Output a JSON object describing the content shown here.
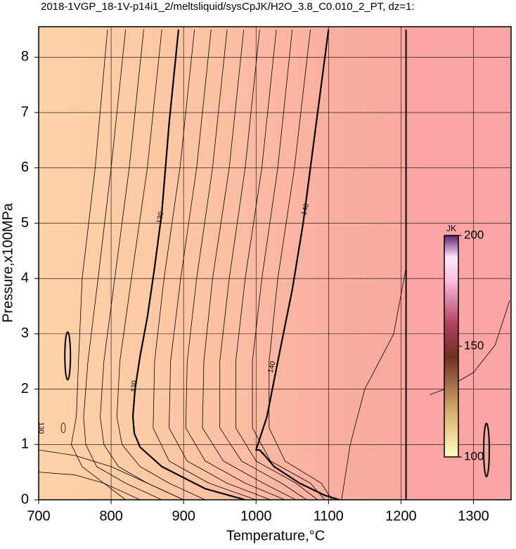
{
  "chart_data": {
    "type": "contour",
    "title": "2018-1VGP_18-1V-p14i1_2/meltsliquid/sysCpJK/H2O_3.8_C0.010_2_PT, dz=1:",
    "x_label": "Temperature,°C",
    "y_label": "Pressure,x100MPa",
    "xlim": [
      700,
      1350
    ],
    "ylim": [
      0,
      8.5
    ],
    "xticks": [
      700,
      800,
      900,
      1000,
      1100,
      1200,
      1300
    ],
    "yticks": [
      0,
      1,
      2,
      3,
      4,
      5,
      6,
      7,
      8
    ],
    "grid": true,
    "bold_contours": [
      {
        "x": [
          893,
          880,
          870,
          860,
          850,
          840,
          833,
          830,
          832,
          840,
          870,
          930,
          985
        ],
        "y": [
          8.5,
          6.8,
          5.2,
          4.2,
          3.3,
          2.6,
          2.0,
          1.5,
          1.2,
          0.95,
          0.6,
          0.2,
          0
        ]
      },
      {
        "x": [
          1100,
          1085,
          1065,
          1050,
          1030,
          1015,
          1000,
          1005,
          1012,
          1025,
          1060,
          1095,
          1115
        ],
        "y": [
          8.5,
          7.0,
          5.0,
          3.8,
          2.5,
          1.5,
          0.9,
          0.9,
          0.8,
          0.6,
          0.3,
          0.08,
          0
        ]
      }
    ],
    "thin_contours": [
      {
        "x": [
          915,
          895,
          873,
          860,
          858,
          880,
          935,
          1000
        ],
        "y": [
          8.5,
          6,
          4,
          2.5,
          1.3,
          0.7,
          0.3,
          0
        ]
      },
      {
        "x": [
          938,
          918,
          896,
          882,
          880,
          905,
          960,
          1020
        ],
        "y": [
          8.5,
          6,
          4,
          2.5,
          1.3,
          0.7,
          0.3,
          0
        ]
      },
      {
        "x": [
          960,
          940,
          918,
          905,
          903,
          930,
          985,
          1040
        ],
        "y": [
          8.5,
          6,
          4,
          2.5,
          1.3,
          0.7,
          0.3,
          0
        ]
      },
      {
        "x": [
          983,
          963,
          940,
          928,
          926,
          955,
          1010,
          1055
        ],
        "y": [
          8.5,
          6,
          4,
          2.5,
          1.3,
          0.7,
          0.3,
          0
        ]
      },
      {
        "x": [
          1005,
          985,
          963,
          950,
          950,
          980,
          1035,
          1070
        ],
        "y": [
          8.5,
          6,
          4,
          2.5,
          1.3,
          0.7,
          0.3,
          0
        ]
      },
      {
        "x": [
          1028,
          1008,
          985,
          972,
          972,
          1000,
          1055,
          1085
        ],
        "y": [
          8.5,
          6,
          4,
          2.5,
          1.3,
          0.7,
          0.3,
          0
        ]
      },
      {
        "x": [
          1050,
          1030,
          1008,
          995,
          995,
          1020,
          1075,
          1095
        ],
        "y": [
          8.5,
          6,
          4,
          2.5,
          1.3,
          0.7,
          0.3,
          0
        ]
      },
      {
        "x": [
          1075,
          1053,
          1030,
          1018,
          1018,
          1040,
          1090,
          1105
        ],
        "y": [
          8.5,
          6,
          4,
          2.5,
          1.3,
          0.7,
          0.3,
          0
        ]
      },
      {
        "x": [
          870,
          850,
          828,
          812,
          808,
          815,
          840,
          880,
          930
        ],
        "y": [
          8.5,
          6,
          4,
          2.5,
          1.5,
          1,
          0.6,
          0.3,
          0
        ]
      },
      {
        "x": [
          845,
          825,
          805,
          790,
          785,
          790,
          810,
          850,
          900
        ],
        "y": [
          8.5,
          6,
          4,
          2.5,
          1.5,
          1,
          0.6,
          0.3,
          0
        ]
      },
      {
        "x": [
          820,
          800,
          782,
          768,
          762,
          765,
          780,
          820,
          870
        ],
        "y": [
          8.5,
          6,
          4,
          2.5,
          1.5,
          1,
          0.6,
          0.3,
          0
        ]
      },
      {
        "x": [
          795,
          778,
          760,
          755,
          752,
          745,
          760,
          790,
          840
        ],
        "y": [
          8.5,
          6,
          4,
          2.5,
          1.5,
          1,
          0.6,
          0.3,
          0
        ]
      },
      {
        "x": [
          1207,
          1190,
          1150,
          1130,
          1118
        ],
        "y": [
          4.2,
          3.0,
          2.0,
          1.0,
          0
        ]
      },
      {
        "x": [
          700,
          750,
          800,
          850,
          900
        ],
        "y": [
          0.9,
          0.8,
          0.6,
          0.3,
          0
        ]
      },
      {
        "x": [
          700,
          750,
          790,
          820
        ],
        "y": [
          0.5,
          0.45,
          0.3,
          0
        ]
      },
      {
        "x": [
          1350,
          1330,
          1300,
          1260,
          1240
        ],
        "y": [
          3.6,
          2.8,
          2.3,
          2.0,
          1.9
        ]
      }
    ],
    "boundary": {
      "x": [
        1207,
        1207
      ],
      "y": [
        0,
        8.5
      ]
    },
    "contour_labels": [
      {
        "text": "130",
        "x": 868,
        "y": 5.1,
        "angle": -80
      },
      {
        "text": "130",
        "x": 832,
        "y": 2.05,
        "angle": -85
      },
      {
        "text": "140",
        "x": 1068,
        "y": 5.25,
        "angle": -75
      },
      {
        "text": "140",
        "x": 1022,
        "y": 2.4,
        "angle": -75
      },
      {
        "text": "130",
        "x": 703,
        "y": 1.3,
        "angle": 90
      }
    ],
    "colorbar": {
      "label": "JK",
      "lim": [
        100,
        200
      ],
      "ticks": [
        100,
        150,
        200
      ]
    }
  }
}
